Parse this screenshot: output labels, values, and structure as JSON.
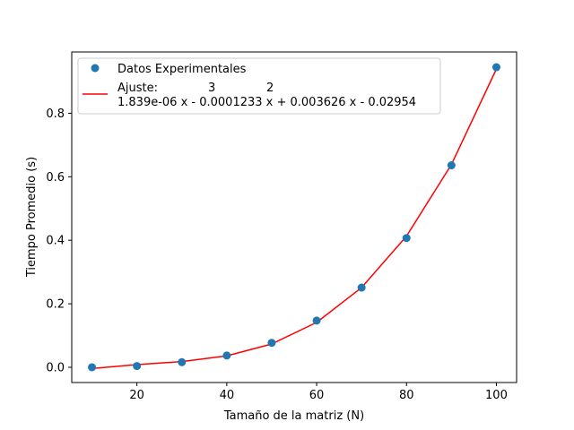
{
  "chart_data": {
    "type": "scatter",
    "xlabel": "Tamaño de la matriz (N)",
    "ylabel": "Tiempo Promedio (s)",
    "xlim": [
      5.5,
      104.5
    ],
    "ylim": [
      -0.048,
      0.993
    ],
    "xticks": [
      20,
      40,
      60,
      80,
      100
    ],
    "yticks": [
      0.0,
      0.2,
      0.4,
      0.6,
      0.8
    ],
    "xtick_labels": [
      "20",
      "40",
      "60",
      "80",
      "100"
    ],
    "ytick_labels": [
      "0.0",
      "0.2",
      "0.4",
      "0.6",
      "0.8"
    ],
    "grid": false,
    "legend_position": "top-left",
    "series": [
      {
        "name": "Datos Experimentales",
        "kind": "scatter",
        "color": "#1f77b4",
        "x": [
          10,
          20,
          30,
          40,
          50,
          60,
          70,
          80,
          90,
          100
        ],
        "y": [
          0.0,
          0.004,
          0.016,
          0.037,
          0.077,
          0.147,
          0.251,
          0.407,
          0.636,
          0.945
        ]
      },
      {
        "name_prefix": "Ajuste:",
        "name_exponents": [
          "3",
          "2"
        ],
        "name_polynomial": "1.839e-06 x - 0.0001233 x + 0.003626 x - 0.02954",
        "kind": "line",
        "color": "#ff0000",
        "coefficients": [
          1.839e-06,
          -0.0001233,
          0.003626,
          -0.02954
        ],
        "x": [
          10,
          20,
          30,
          40,
          50,
          60,
          70,
          80,
          90,
          100
        ]
      }
    ]
  }
}
